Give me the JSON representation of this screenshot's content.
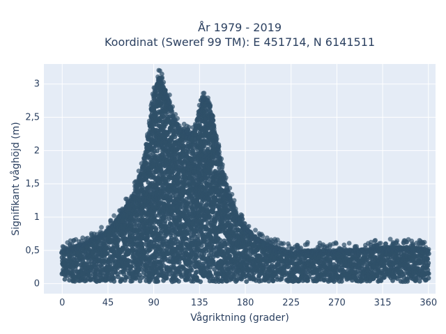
{
  "chart_data": {
    "type": "scatter",
    "title_line1": "År 1979 - 2019",
    "title_line2": "Koordinat (Sweref 99 TM): E 451714, N 6141511",
    "xlabel": "Vågriktning (grader)",
    "ylabel": "Signifikant våghöjd (m)",
    "xlim": [
      -18,
      367
    ],
    "ylim": [
      -0.15,
      3.3
    ],
    "x_ticks": [
      0,
      45,
      90,
      135,
      180,
      225,
      270,
      315,
      360
    ],
    "x_tick_labels": [
      "0",
      "45",
      "90",
      "135",
      "180",
      "225",
      "270",
      "315",
      "360"
    ],
    "y_ticks": [
      0,
      0.5,
      1,
      1.5,
      2,
      2.5,
      3
    ],
    "y_tick_labels": [
      "0",
      "0,5",
      "1",
      "1,5",
      "2",
      "2,5",
      "3"
    ],
    "grid": true,
    "marker_color": "#2f5069",
    "plot_background": "#e5ecf6",
    "envelope": {
      "direction": [
        0,
        10,
        20,
        30,
        40,
        50,
        60,
        70,
        80,
        85,
        90,
        95,
        100,
        105,
        110,
        115,
        120,
        125,
        130,
        135,
        140,
        145,
        150,
        155,
        160,
        170,
        180,
        190,
        200,
        210,
        220,
        225,
        240,
        260,
        280,
        300,
        320,
        340,
        360
      ],
      "max_height": [
        0.5,
        0.55,
        0.6,
        0.68,
        0.75,
        0.9,
        1.1,
        1.35,
        1.8,
        2.3,
        2.85,
        3.1,
        2.95,
        2.75,
        2.5,
        2.35,
        2.3,
        2.25,
        2.3,
        2.6,
        2.8,
        2.7,
        2.3,
        1.9,
        1.55,
        1.1,
        0.85,
        0.7,
        0.6,
        0.55,
        0.5,
        0.48,
        0.5,
        0.5,
        0.5,
        0.52,
        0.55,
        0.55,
        0.52
      ],
      "min_height": 0.03
    },
    "notable_points": [
      {
        "x": 96,
        "y": 3.2
      },
      {
        "x": 98,
        "y": 3.15
      },
      {
        "x": 138,
        "y": 2.8
      },
      {
        "x": 145,
        "y": 2.6
      },
      {
        "x": 53,
        "y": 0.72
      },
      {
        "x": 29,
        "y": 0.73
      },
      {
        "x": 198,
        "y": 0.6
      },
      {
        "x": 288,
        "y": 0.56
      },
      {
        "x": 318,
        "y": 0.6
      },
      {
        "x": 324,
        "y": 0.57
      },
      {
        "x": 345,
        "y": 0.53
      },
      {
        "x": 357,
        "y": 0.05
      }
    ]
  }
}
